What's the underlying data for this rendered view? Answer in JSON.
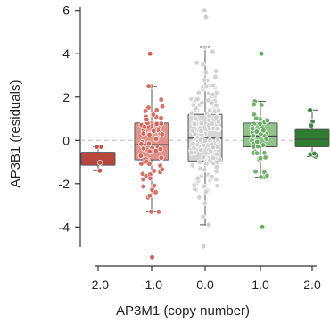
{
  "chart_data": {
    "type": "box",
    "xlabel": "AP3M1 (copy number)",
    "ylabel": "AP3B1 (residuals)",
    "ylim": [
      -5.8,
      6.4
    ],
    "yticks": [
      -4,
      -2,
      0,
      2,
      4,
      6
    ],
    "ytick_labels": [
      "-4",
      "-2",
      "0",
      "2",
      "4",
      "6"
    ],
    "reference_line": 0,
    "grid": false,
    "categories": [
      "-2.0",
      "-1.0",
      "0.0",
      "1.0",
      "2.0"
    ],
    "boxes": [
      {
        "category": "-2.0",
        "whisker_low": -1.4,
        "q1": -1.15,
        "median": -1.0,
        "q3": -0.55,
        "whisker_high": -0.3,
        "box_color": "#b9473d",
        "point_color": "#c0473c",
        "n_points": 4
      },
      {
        "category": "-1.0",
        "whisker_low": -3.3,
        "q1": -0.9,
        "median": -0.2,
        "q3": 0.8,
        "whisker_high": 2.5,
        "box_color": "#e0938b",
        "point_color": "#d65f55",
        "n_points": 70
      },
      {
        "category": "0.0",
        "whisker_low": -3.9,
        "q1": -0.95,
        "median": 0.1,
        "q3": 1.2,
        "whisker_high": 4.3,
        "box_color": "#d6d6d6",
        "point_color": "#cfcfcf",
        "n_points": 150
      },
      {
        "category": "1.0",
        "whisker_low": -1.7,
        "q1": -0.3,
        "median": 0.2,
        "q3": 0.8,
        "whisker_high": 1.8,
        "box_color": "#8ec48a",
        "point_color": "#63ac5f",
        "n_points": 45
      },
      {
        "category": "2.0",
        "whisker_low": -0.75,
        "q1": -0.3,
        "median": 0.05,
        "q3": 0.5,
        "whisker_high": 1.4,
        "box_color": "#2f7d32",
        "point_color": "#2f7d32",
        "n_points": 7
      }
    ],
    "outliers": [
      {
        "category": "-1.0",
        "y": 4.0
      },
      {
        "category": "-1.0",
        "y": -5.4
      },
      {
        "category": "0.0",
        "y": 6.0
      },
      {
        "category": "0.0",
        "y": 5.7
      },
      {
        "category": "0.0",
        "y": -4.9
      },
      {
        "category": "1.0",
        "y": 4.0
      },
      {
        "category": "1.0",
        "y": -4.0
      }
    ]
  }
}
